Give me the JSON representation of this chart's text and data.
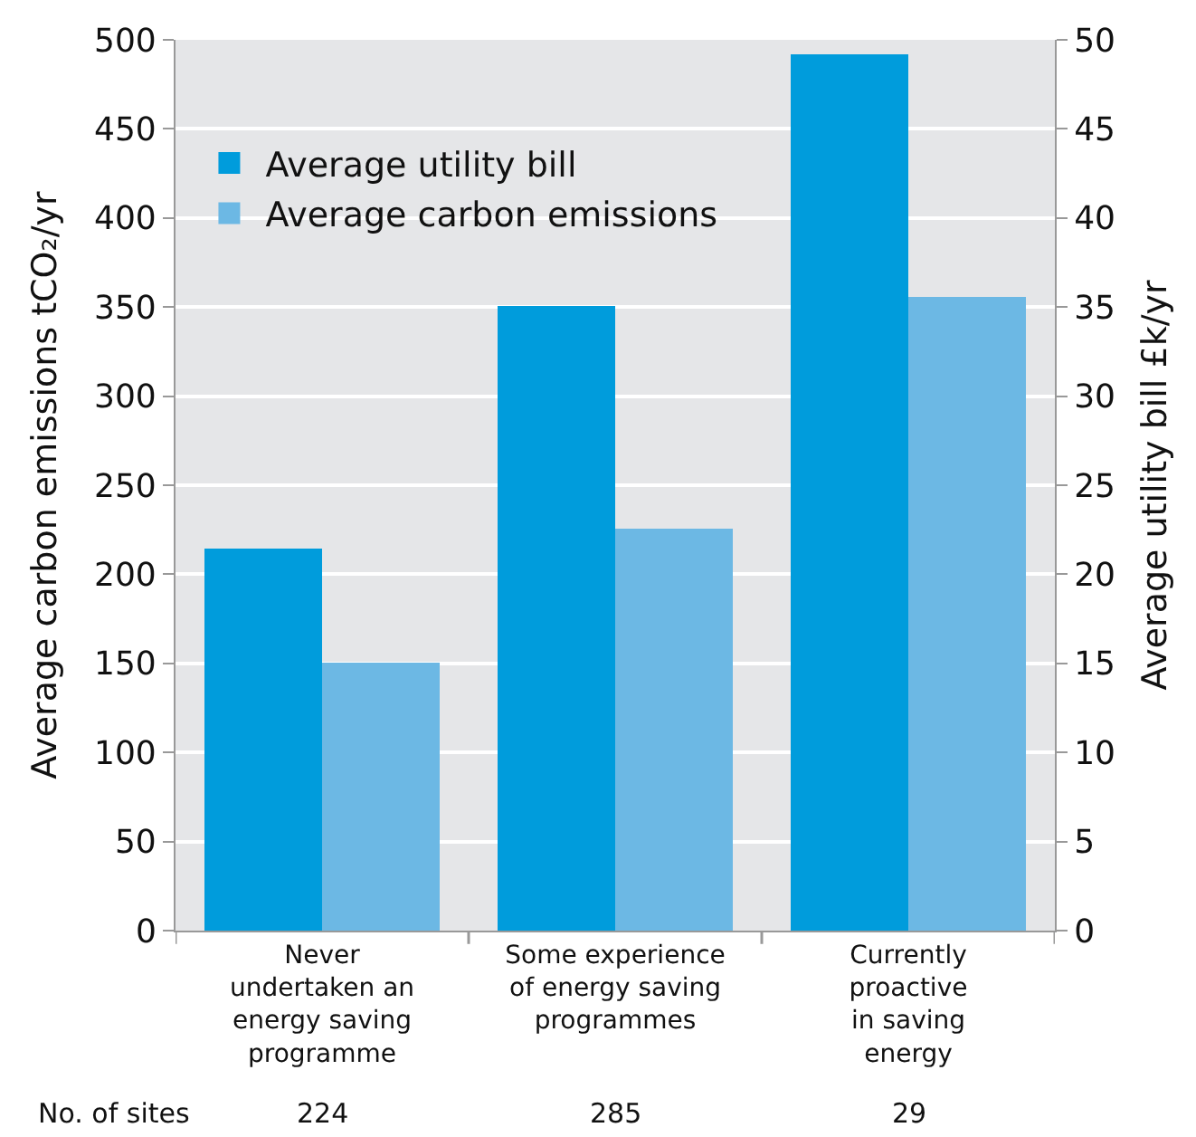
{
  "chart_data": {
    "type": "bar",
    "ylabel": "Average carbon emissions tCO₂/yr",
    "y2label": "Average utility bill £k/yr",
    "categories": [
      "Never\nundertaken an\nenergy saving\nprogramme",
      "Some experience\nof energy saving\nprogrammes",
      "Currently\nproactive\nin saving\nenergy"
    ],
    "series": [
      {
        "name": "Average utility bill",
        "color": "#009cdc",
        "values": [
          21.4,
          35.1,
          49.2
        ],
        "axis": "y2"
      },
      {
        "name": "Average carbon emissions",
        "color": "#6cb8e4",
        "values": [
          150,
          226,
          356
        ]
      }
    ],
    "ylim": [
      0,
      500
    ],
    "yticks": [
      0,
      50,
      100,
      150,
      200,
      250,
      300,
      350,
      400,
      450,
      500
    ],
    "y2lim": [
      0,
      50
    ],
    "y2ticks": [
      0,
      5,
      10,
      15,
      20,
      25,
      30,
      35,
      40,
      45,
      50
    ],
    "grid": "y",
    "legend": "top left",
    "annotations": [
      "No. of sites",
      "224",
      "285",
      "29"
    ]
  }
}
